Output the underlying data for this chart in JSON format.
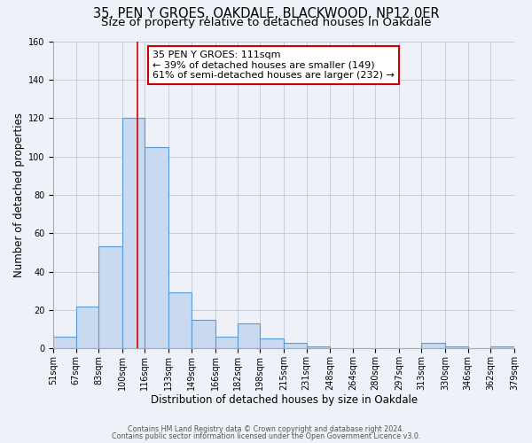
{
  "title1": "35, PEN Y GROES, OAKDALE, BLACKWOOD, NP12 0ER",
  "title2": "Size of property relative to detached houses in Oakdale",
  "xlabel": "Distribution of detached houses by size in Oakdale",
  "ylabel": "Number of detached properties",
  "bar_values": [
    6,
    22,
    53,
    120,
    105,
    29,
    15,
    6,
    13,
    5,
    3,
    1,
    0,
    0,
    0,
    0,
    3,
    1,
    0,
    1
  ],
  "bin_labels": [
    "51sqm",
    "67sqm",
    "83sqm",
    "100sqm",
    "116sqm",
    "133sqm",
    "149sqm",
    "166sqm",
    "182sqm",
    "198sqm",
    "215sqm",
    "231sqm",
    "248sqm",
    "264sqm",
    "280sqm",
    "297sqm",
    "313sqm",
    "330sqm",
    "346sqm",
    "362sqm",
    "379sqm"
  ],
  "bin_edges": [
    51,
    67,
    83,
    100,
    116,
    133,
    149,
    166,
    182,
    198,
    215,
    231,
    248,
    264,
    280,
    297,
    313,
    330,
    346,
    362,
    379
  ],
  "bar_color": "#c9d9f0",
  "bar_edge_color": "#5b9bd5",
  "bar_edge_width": 0.8,
  "property_line_x": 111,
  "annotation_line_color": "#cc0000",
  "ylim": [
    0,
    160
  ],
  "yticks": [
    0,
    20,
    40,
    60,
    80,
    100,
    120,
    140,
    160
  ],
  "grid_color": "#c0c8d8",
  "background_color": "#eef2f8",
  "footer1": "Contains HM Land Registry data © Crown copyright and database right 2024.",
  "footer2": "Contains public sector information licensed under the Open Government Licence v3.0.",
  "title_fontsize": 10.5,
  "subtitle_fontsize": 9.5,
  "tick_fontsize": 7,
  "xlabel_fontsize": 8.5,
  "ylabel_fontsize": 8.5,
  "annotation_fontsize": 8,
  "ann_line1": "35 PEN Y GROES: 111sqm",
  "ann_line2": "← 39% of detached houses are smaller (149)",
  "ann_line3": "61% of semi-detached houses are larger (232) →"
}
